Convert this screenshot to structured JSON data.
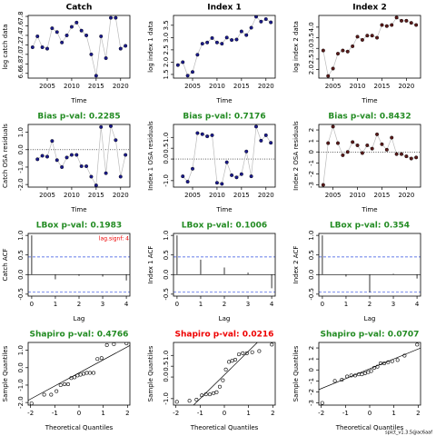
{
  "chart_data": [
    {
      "type": "line",
      "title": "Catch",
      "title_color": "#000000",
      "xlabel": "Time",
      "ylabel": "log catch data",
      "color": "#1a1a8c",
      "x": [
        2002,
        2003,
        2004,
        2005,
        2006,
        2007,
        2008,
        2009,
        2010,
        2011,
        2012,
        2013,
        2014,
        2015,
        2016,
        2017,
        2018,
        2019,
        2020,
        2021
      ],
      "values": [
        7.15,
        7.38,
        7.15,
        7.12,
        7.55,
        7.47,
        7.25,
        7.4,
        7.58,
        7.67,
        7.5,
        7.4,
        7.0,
        6.55,
        7.38,
        6.92,
        7.77,
        7.77,
        7.12,
        7.18
      ],
      "xlim": [
        2001.1,
        2021.9
      ],
      "ylim": [
        6.5,
        7.82
      ],
      "xticks": [
        2005,
        2010,
        2015,
        2020
      ],
      "yticks": [
        6.6,
        6.8,
        {
          "value": 7,
          "label": "7.0"
        },
        7.2,
        7.4,
        7.6,
        7.8
      ]
    },
    {
      "type": "line",
      "title": "Index 1",
      "title_color": "#000000",
      "xlabel": "Time",
      "ylabel": "log index 1 data",
      "color": "#1a1a8c",
      "x": [
        2002,
        2003,
        2004,
        2005,
        2006,
        2007,
        2008,
        2009,
        2010,
        2011,
        2012,
        2013,
        2014,
        2015,
        2016,
        2017,
        2018,
        2019,
        2020,
        2021
      ],
      "values": [
        1.88,
        2.0,
        1.45,
        1.6,
        2.3,
        2.75,
        2.8,
        2.98,
        2.8,
        2.75,
        3.0,
        2.9,
        2.92,
        3.25,
        3.1,
        3.4,
        3.85,
        3.65,
        3.75,
        3.62
      ],
      "xlim": [
        2001.1,
        2021.9
      ],
      "ylim": [
        1.35,
        3.9
      ],
      "xticks": [
        2005,
        2010,
        2015,
        2020
      ],
      "yticks": [
        1.5,
        {
          "value": 2,
          "label": "2.0"
        },
        2.5,
        {
          "value": 3,
          "label": "3.0"
        },
        3.5
      ]
    },
    {
      "type": "line",
      "title": "Index 2",
      "title_color": "#000000",
      "xlabel": "Time",
      "ylabel": "log index 2 data",
      "color": "#5a1a1a",
      "x": [
        2003,
        2004,
        2005,
        2006,
        2007,
        2008,
        2009,
        2010,
        2011,
        2012,
        2013,
        2014,
        2015,
        2016,
        2017,
        2018,
        2019,
        2020,
        2021,
        2022
      ],
      "values": [
        2.9,
        1.7,
        2.05,
        2.75,
        2.9,
        2.85,
        3.1,
        3.55,
        3.4,
        3.6,
        3.6,
        3.5,
        4.1,
        4.05,
        4.1,
        4.45,
        4.3,
        4.3,
        4.2,
        4.1
      ],
      "xlim": [
        2002.1,
        2022.9
      ],
      "ylim": [
        1.6,
        4.55
      ],
      "xticks": [
        2005,
        2010,
        2015,
        2020
      ],
      "yticks": [
        {
          "value": 2,
          "label": "2.0"
        },
        2.5,
        {
          "value": 3,
          "label": "3.0"
        },
        3.5,
        {
          "value": 4,
          "label": "4.0"
        }
      ]
    },
    {
      "type": "line",
      "title": "Bias p-val: 0.2285",
      "title_color": "#228b22",
      "xlabel": "Time",
      "ylabel": "Catch OSA residuals",
      "color": "#1a1a8c",
      "x": [
        2003,
        2004,
        2005,
        2006,
        2007,
        2008,
        2009,
        2010,
        2011,
        2012,
        2013,
        2014,
        2015,
        2016,
        2017,
        2018,
        2019,
        2020,
        2021
      ],
      "values": [
        -0.55,
        -0.35,
        -0.4,
        0.5,
        -0.6,
        -1.0,
        -0.45,
        -0.3,
        -0.3,
        -0.95,
        -0.95,
        -1.55,
        -2.05,
        1.3,
        -1.35,
        1.35,
        0.55,
        -1.55,
        -0.3
      ],
      "xlim": [
        2001.1,
        2021.9
      ],
      "ylim": [
        -2.15,
        1.45
      ],
      "xticks": [
        2005,
        2010,
        2015,
        2020
      ],
      "yticks": [
        {
          "value": -2,
          "label": "-2.0"
        },
        {
          "value": -1,
          "label": "-1.0"
        },
        {
          "value": 0,
          "label": "0.0"
        },
        {
          "value": 1,
          "label": "1.0"
        }
      ],
      "hline": 0
    },
    {
      "type": "line",
      "title": "Bias p-val: 0.7176",
      "title_color": "#228b22",
      "xlabel": "Time",
      "ylabel": "Index 1 OSA residuals",
      "color": "#1a1a8c",
      "x": [
        2003,
        2004,
        2005,
        2006,
        2007,
        2008,
        2009,
        2010,
        2011,
        2012,
        2013,
        2014,
        2015,
        2016,
        2017,
        2018,
        2019,
        2020,
        2021
      ],
      "values": [
        -0.8,
        -1.05,
        -0.45,
        1.2,
        1.15,
        1.05,
        1.1,
        -1.1,
        -1.15,
        -0.15,
        -0.75,
        -0.85,
        -0.7,
        0.35,
        -0.8,
        1.5,
        0.85,
        1.1,
        0.75
      ],
      "xlim": [
        2001.1,
        2021.9
      ],
      "ylim": [
        -1.3,
        1.6
      ],
      "xticks": [
        2005,
        2010,
        2015,
        2020
      ],
      "yticks": [
        {
          "value": -1,
          "label": "-1.0"
        },
        {
          "value": 0,
          "label": "0.0"
        },
        0.5,
        {
          "value": 1,
          "label": "1.0"
        }
      ],
      "hline": 0
    },
    {
      "type": "line",
      "title": "Bias p-val: 0.8432",
      "title_color": "#228b22",
      "xlabel": "Time",
      "ylabel": "Index 2 OSA residuals",
      "color": "#5a1a1a",
      "x": [
        2003,
        2004,
        2005,
        2006,
        2007,
        2008,
        2009,
        2010,
        2011,
        2012,
        2013,
        2014,
        2015,
        2016,
        2017,
        2018,
        2019,
        2020,
        2021,
        2022
      ],
      "values": [
        -3.0,
        0.8,
        2.3,
        0.8,
        -0.3,
        0.0,
        0.9,
        0.6,
        -0.1,
        0.6,
        0.3,
        1.6,
        0.7,
        0.2,
        1.3,
        -0.2,
        -0.2,
        -0.4,
        -0.6,
        -0.5
      ],
      "xlim": [
        2002.1,
        2022.9
      ],
      "ylim": [
        -3.2,
        2.5
      ],
      "xticks": [
        2005,
        2010,
        2015,
        2020
      ],
      "yticks": [
        -3,
        -2,
        -1,
        0,
        1,
        2
      ],
      "hline": 0
    },
    {
      "type": "bar",
      "title": "LBox p-val: 0.1983",
      "title_color": "#228b22",
      "xlabel": "Lag",
      "ylabel": "Catch ACF",
      "color": "#000000",
      "x": [
        0,
        1,
        2,
        3,
        4
      ],
      "values": [
        1,
        -0.12,
        -0.03,
        -0.05,
        -0.15
      ],
      "ci": [
        0.45,
        -0.45
      ],
      "annotation": "lag.signf: 4",
      "xlim": [
        -0.15,
        4.15
      ],
      "ylim": [
        -0.55,
        1.05
      ],
      "xticks": [
        0,
        1,
        2,
        3,
        4
      ],
      "yticks": [
        -0.5,
        {
          "value": 0,
          "label": "0.0"
        },
        0.5,
        {
          "value": 1,
          "label": "1.0"
        }
      ]
    },
    {
      "type": "bar",
      "title": "LBox p-val: 0.1006",
      "title_color": "#228b22",
      "xlabel": "Lag",
      "ylabel": "Index 1 ACF",
      "color": "#000000",
      "x": [
        0,
        1,
        2,
        3,
        4
      ],
      "values": [
        1,
        0.38,
        0.18,
        0.05,
        -0.35
      ],
      "ci": [
        0.45,
        -0.45
      ],
      "xlim": [
        -0.15,
        4.15
      ],
      "ylim": [
        -0.55,
        1.05
      ],
      "xticks": [
        0,
        1,
        2,
        3,
        4
      ],
      "yticks": [
        -0.5,
        {
          "value": 0,
          "label": "0.0"
        },
        0.5,
        {
          "value": 1,
          "label": "1.0"
        }
      ]
    },
    {
      "type": "bar",
      "title": "LBox p-val: 0.354",
      "title_color": "#228b22",
      "xlabel": "Lag",
      "ylabel": "Index 2 ACF",
      "color": "#000000",
      "x": [
        0,
        1,
        2,
        3,
        4
      ],
      "values": [
        1,
        -0.05,
        -0.45,
        0.02,
        -0.1
      ],
      "ci": [
        0.45,
        -0.45
      ],
      "xlim": [
        -0.15,
        4.15
      ],
      "ylim": [
        -0.55,
        1.05
      ],
      "xticks": [
        0,
        1,
        2,
        3,
        4
      ],
      "yticks": [
        -0.5,
        {
          "value": 0,
          "label": "0.0"
        },
        0.5,
        {
          "value": 1,
          "label": "1.0"
        }
      ]
    },
    {
      "type": "scatter",
      "title": "Shapiro p-val: 0.4766",
      "title_color": "#228b22",
      "xlabel": "Theoretical Quantiles",
      "ylabel": "Sample Quantiles",
      "color": "#000000",
      "x": [
        -1.96,
        -1.44,
        -1.15,
        -0.93,
        -0.76,
        -0.6,
        -0.45,
        -0.32,
        -0.19,
        -0.06,
        0.06,
        0.19,
        0.32,
        0.45,
        0.6,
        0.76,
        0.93,
        1.15,
        1.44,
        1.96
      ],
      "values": [
        -2.05,
        -1.55,
        -1.55,
        -1.35,
        -1.0,
        -0.95,
        -0.95,
        -0.6,
        -0.55,
        -0.45,
        -0.4,
        -0.35,
        -0.3,
        -0.3,
        -0.3,
        0.5,
        0.55,
        1.3,
        1.35,
        1.4
      ],
      "qq_line": {
        "intercept": -0.3,
        "slope": 0.75
      },
      "xlim": [
        -2.1,
        2.1
      ],
      "ylim": [
        -2.15,
        1.45
      ],
      "xticks": [
        -2,
        -1,
        0,
        1,
        2
      ],
      "yticks": [
        {
          "value": -2,
          "label": "-2.0"
        },
        {
          "value": -1,
          "label": "-1.0"
        },
        {
          "value": 0,
          "label": "0.0"
        },
        {
          "value": 1,
          "label": "1.0"
        }
      ]
    },
    {
      "type": "scatter",
      "title": "Shapiro p-val: 0.0216",
      "title_color": "#ee0000",
      "xlabel": "Theoretical Quantiles",
      "ylabel": "Sample Quantiles",
      "color": "#000000",
      "x": [
        -1.96,
        -1.44,
        -1.15,
        -0.93,
        -0.76,
        -0.6,
        -0.45,
        -0.32,
        -0.19,
        -0.06,
        0.06,
        0.19,
        0.32,
        0.45,
        0.6,
        0.76,
        0.93,
        1.15,
        1.44,
        1.96
      ],
      "values": [
        -1.15,
        -1.1,
        -1.05,
        -0.85,
        -0.8,
        -0.8,
        -0.75,
        -0.7,
        -0.45,
        -0.15,
        0.35,
        0.7,
        0.75,
        0.8,
        1.05,
        1.1,
        1.1,
        1.15,
        1.2,
        1.5
      ],
      "qq_line": {
        "intercept": 0.1,
        "slope": 1.1
      },
      "xlim": [
        -2.1,
        2.1
      ],
      "ylim": [
        -1.3,
        1.6
      ],
      "xticks": [
        -2,
        -1,
        0,
        1,
        2
      ],
      "yticks": [
        {
          "value": -1,
          "label": "-1.0"
        },
        {
          "value": 0,
          "label": "0.0"
        },
        0.5,
        {
          "value": 1,
          "label": "1.0"
        }
      ]
    },
    {
      "type": "scatter",
      "title": "Shapiro p-val: 0.0707",
      "title_color": "#228b22",
      "xlabel": "Theoretical Quantiles",
      "ylabel": "Sample Quantiles",
      "color": "#000000",
      "x": [
        -1.96,
        -1.44,
        -1.15,
        -0.93,
        -0.76,
        -0.6,
        -0.45,
        -0.32,
        -0.19,
        -0.06,
        0.06,
        0.19,
        0.32,
        0.45,
        0.6,
        0.76,
        0.93,
        1.15,
        1.44,
        1.96
      ],
      "values": [
        -3.0,
        -1.0,
        -0.9,
        -0.6,
        -0.5,
        -0.5,
        -0.4,
        -0.4,
        -0.3,
        -0.2,
        -0.1,
        0.2,
        0.3,
        0.6,
        0.6,
        0.7,
        0.8,
        0.9,
        1.3,
        2.3
      ],
      "qq_line": {
        "intercept": 0.1,
        "slope": 0.9
      },
      "xlim": [
        -2.1,
        2.1
      ],
      "ylim": [
        -3.2,
        2.5
      ],
      "xticks": [
        -2,
        -1,
        0,
        1,
        2
      ],
      "yticks": [
        -3,
        -2,
        -1,
        0,
        1,
        2
      ]
    }
  ],
  "footer": "spict_v1.3.5@ac6aaf"
}
